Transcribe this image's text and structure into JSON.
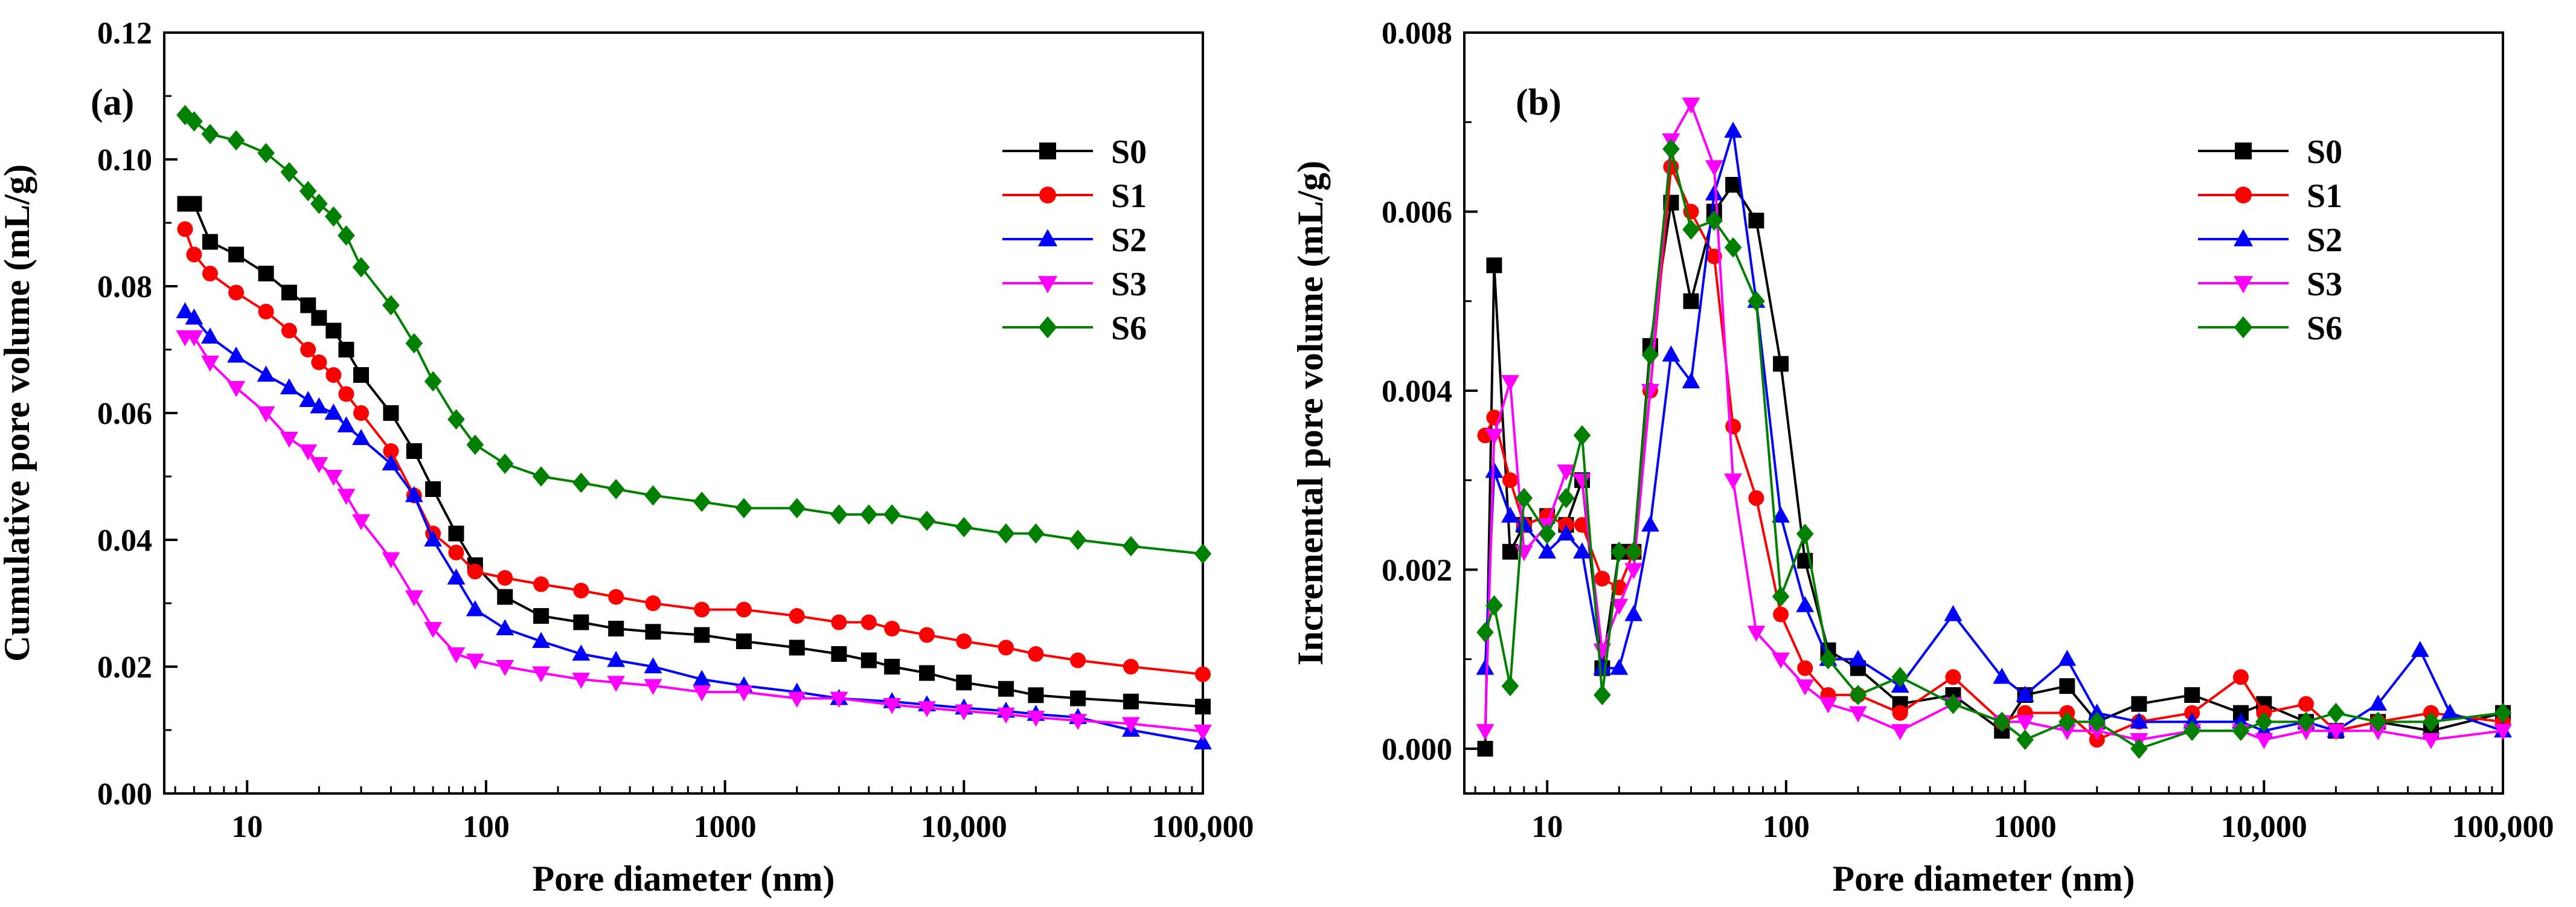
{
  "colors": {
    "S0": "#000000",
    "S1": "#ff0000",
    "S2": "#0000ff",
    "S3": "#ff00ff",
    "S6": "#008000"
  },
  "chart_data": [
    {
      "type": "line",
      "panel_label": "(a)",
      "xlabel": "Pore diameter (nm)",
      "ylabel": "Cumulative pore volume (mL/g)",
      "xscale": "log",
      "xlim": [
        4.5,
        100000
      ],
      "ylim": [
        0,
        0.12
      ],
      "xticks": [
        10,
        100,
        1000,
        10000,
        100000
      ],
      "xtick_labels": [
        "10",
        "100",
        "1000",
        "10,000",
        "100,000"
      ],
      "yticks": [
        0,
        0.02,
        0.04,
        0.06,
        0.08,
        0.1,
        0.12
      ],
      "ytick_labels": [
        "0.00",
        "0.02",
        "0.04",
        "0.06",
        "0.08",
        "0.10",
        "0.12"
      ],
      "legend": "top-right",
      "series": [
        {
          "name": "S0",
          "marker": "square",
          "color": "#000000",
          "x": [
            5.5,
            6,
            7,
            9,
            12,
            15,
            18,
            20,
            23,
            26,
            30,
            40,
            50,
            60,
            75,
            90,
            120,
            170,
            250,
            350,
            500,
            800,
            1200,
            2000,
            3000,
            4000,
            5000,
            7000,
            10000,
            15000,
            20000,
            30000,
            50000,
            100000
          ],
          "y": [
            0.093,
            0.093,
            0.087,
            0.085,
            0.082,
            0.079,
            0.077,
            0.075,
            0.073,
            0.07,
            0.066,
            0.06,
            0.054,
            0.048,
            0.041,
            0.036,
            0.031,
            0.028,
            0.027,
            0.026,
            0.0255,
            0.025,
            0.024,
            0.023,
            0.022,
            0.021,
            0.02,
            0.019,
            0.0175,
            0.0165,
            0.0155,
            0.015,
            0.0145,
            0.0137
          ]
        },
        {
          "name": "S1",
          "marker": "circle",
          "color": "#ff0000",
          "x": [
            5.5,
            6,
            7,
            9,
            12,
            15,
            18,
            20,
            23,
            26,
            30,
            40,
            50,
            60,
            75,
            90,
            120,
            170,
            250,
            350,
            500,
            800,
            1200,
            2000,
            3000,
            4000,
            5000,
            7000,
            10000,
            15000,
            20000,
            30000,
            50000,
            100000
          ],
          "y": [
            0.089,
            0.085,
            0.082,
            0.079,
            0.076,
            0.073,
            0.07,
            0.068,
            0.066,
            0.063,
            0.06,
            0.054,
            0.047,
            0.041,
            0.038,
            0.035,
            0.034,
            0.033,
            0.032,
            0.031,
            0.03,
            0.029,
            0.029,
            0.028,
            0.027,
            0.027,
            0.026,
            0.025,
            0.024,
            0.023,
            0.022,
            0.021,
            0.02,
            0.0188
          ]
        },
        {
          "name": "S2",
          "marker": "triangle-up",
          "color": "#0000ff",
          "x": [
            5.5,
            6,
            7,
            9,
            12,
            15,
            18,
            20,
            23,
            26,
            30,
            40,
            50,
            60,
            75,
            90,
            120,
            170,
            250,
            350,
            500,
            800,
            1200,
            2000,
            3000,
            5000,
            7000,
            10000,
            15000,
            20000,
            30000,
            50000,
            100000
          ],
          "y": [
            0.076,
            0.075,
            0.072,
            0.069,
            0.066,
            0.064,
            0.062,
            0.061,
            0.06,
            0.058,
            0.056,
            0.052,
            0.047,
            0.04,
            0.034,
            0.029,
            0.026,
            0.024,
            0.022,
            0.021,
            0.02,
            0.018,
            0.017,
            0.016,
            0.015,
            0.0145,
            0.014,
            0.0135,
            0.013,
            0.0125,
            0.012,
            0.01,
            0.008
          ]
        },
        {
          "name": "S3",
          "marker": "triangle-down",
          "color": "#ff00ff",
          "x": [
            5.5,
            6,
            7,
            9,
            12,
            15,
            18,
            20,
            23,
            26,
            30,
            40,
            50,
            60,
            75,
            90,
            120,
            170,
            250,
            350,
            500,
            800,
            1200,
            2000,
            3000,
            5000,
            7000,
            10000,
            15000,
            20000,
            30000,
            50000,
            100000
          ],
          "y": [
            0.072,
            0.072,
            0.068,
            0.064,
            0.06,
            0.056,
            0.054,
            0.052,
            0.05,
            0.047,
            0.043,
            0.037,
            0.031,
            0.026,
            0.022,
            0.021,
            0.02,
            0.019,
            0.018,
            0.0175,
            0.017,
            0.016,
            0.016,
            0.015,
            0.015,
            0.014,
            0.0135,
            0.013,
            0.0125,
            0.012,
            0.0115,
            0.011,
            0.0098
          ]
        },
        {
          "name": "S6",
          "marker": "diamond",
          "color": "#008000",
          "x": [
            5.5,
            6,
            7,
            9,
            12,
            15,
            18,
            20,
            23,
            26,
            30,
            40,
            50,
            60,
            75,
            90,
            120,
            170,
            250,
            350,
            500,
            800,
            1200,
            2000,
            3000,
            4000,
            5000,
            7000,
            10000,
            15000,
            20000,
            30000,
            50000,
            100000
          ],
          "y": [
            0.107,
            0.106,
            0.104,
            0.103,
            0.101,
            0.098,
            0.095,
            0.093,
            0.091,
            0.088,
            0.083,
            0.077,
            0.071,
            0.065,
            0.059,
            0.055,
            0.052,
            0.05,
            0.049,
            0.048,
            0.047,
            0.046,
            0.045,
            0.045,
            0.044,
            0.044,
            0.044,
            0.043,
            0.042,
            0.041,
            0.041,
            0.04,
            0.039,
            0.0378
          ]
        }
      ]
    },
    {
      "type": "line",
      "panel_label": "(b)",
      "xlabel": "Pore diameter (nm)",
      "ylabel": "Incremental pore volume (mL/g)",
      "xscale": "log",
      "xlim": [
        4.5,
        100000
      ],
      "ylim": [
        -0.0005,
        0.008
      ],
      "xticks": [
        10,
        100,
        1000,
        10000,
        100000
      ],
      "xtick_labels": [
        "10",
        "100",
        "1000",
        "10,000",
        "100,000"
      ],
      "yticks": [
        0,
        0.002,
        0.004,
        0.006,
        0.008
      ],
      "ytick_labels": [
        "0.000",
        "0.002",
        "0.004",
        "0.006",
        "0.008"
      ],
      "legend": "top-right",
      "series": [
        {
          "name": "S0",
          "marker": "square",
          "color": "#000000",
          "x": [
            5.5,
            6,
            7,
            8,
            10,
            12,
            14,
            17,
            20,
            23,
            27,
            33,
            40,
            50,
            60,
            75,
            95,
            120,
            150,
            200,
            300,
            500,
            800,
            1000,
            1500,
            2000,
            3000,
            5000,
            8000,
            10000,
            15000,
            20000,
            30000,
            50000,
            100000
          ],
          "y": [
            0.0,
            0.0054,
            0.0022,
            0.0025,
            0.0026,
            0.0025,
            0.003,
            0.0009,
            0.0022,
            0.0022,
            0.0045,
            0.0061,
            0.005,
            0.006,
            0.0063,
            0.0059,
            0.0043,
            0.0021,
            0.0011,
            0.0009,
            0.0005,
            0.0006,
            0.0002,
            0.0006,
            0.0007,
            0.0003,
            0.0005,
            0.0006,
            0.0004,
            0.0005,
            0.0003,
            0.0002,
            0.0003,
            0.0002,
            0.0004
          ]
        },
        {
          "name": "S1",
          "marker": "circle",
          "color": "#ff0000",
          "x": [
            5.5,
            6,
            7,
            8,
            10,
            12,
            14,
            17,
            20,
            23,
            27,
            33,
            40,
            50,
            60,
            75,
            95,
            120,
            150,
            200,
            300,
            500,
            800,
            1000,
            1500,
            2000,
            3000,
            5000,
            8000,
            10000,
            15000,
            20000,
            30000,
            50000,
            100000
          ],
          "y": [
            0.0035,
            0.0037,
            0.003,
            0.0025,
            0.0026,
            0.0025,
            0.0025,
            0.0019,
            0.0018,
            0.0022,
            0.004,
            0.0065,
            0.006,
            0.0055,
            0.0036,
            0.0028,
            0.0015,
            0.0009,
            0.0006,
            0.0006,
            0.0004,
            0.0008,
            0.0003,
            0.0004,
            0.0004,
            0.0001,
            0.0003,
            0.0004,
            0.0008,
            0.0004,
            0.0005,
            0.0002,
            0.0003,
            0.0004,
            0.0003
          ]
        },
        {
          "name": "S2",
          "marker": "triangle-up",
          "color": "#0000ff",
          "x": [
            5.5,
            6,
            7,
            8,
            10,
            12,
            14,
            17,
            20,
            23,
            27,
            33,
            40,
            50,
            60,
            75,
            95,
            120,
            150,
            200,
            300,
            500,
            800,
            1000,
            1500,
            2000,
            3000,
            5000,
            8000,
            10000,
            15000,
            20000,
            30000,
            45000,
            60000,
            100000
          ],
          "y": [
            0.0009,
            0.0031,
            0.0026,
            0.0025,
            0.0022,
            0.0024,
            0.0022,
            0.0009,
            0.0009,
            0.0015,
            0.0025,
            0.0044,
            0.0041,
            0.0062,
            0.0069,
            0.005,
            0.0026,
            0.0016,
            0.001,
            0.001,
            0.0007,
            0.0015,
            0.0008,
            0.0006,
            0.001,
            0.0004,
            0.0003,
            0.0003,
            0.0003,
            0.0002,
            0.0003,
            0.0002,
            0.0005,
            0.0011,
            0.0004,
            0.0002
          ]
        },
        {
          "name": "S3",
          "marker": "triangle-down",
          "color": "#ff00ff",
          "x": [
            5.5,
            6,
            7,
            8,
            10,
            12,
            14,
            17,
            20,
            23,
            27,
            33,
            40,
            50,
            60,
            75,
            95,
            120,
            150,
            200,
            300,
            500,
            800,
            1000,
            1500,
            2000,
            3000,
            5000,
            8000,
            10000,
            15000,
            20000,
            30000,
            50000,
            100000
          ],
          "y": [
            0.0002,
            0.0035,
            0.0041,
            0.0022,
            0.0025,
            0.0031,
            0.003,
            0.0011,
            0.0016,
            0.002,
            0.004,
            0.0068,
            0.0072,
            0.0065,
            0.003,
            0.0013,
            0.001,
            0.0007,
            0.0005,
            0.0004,
            0.0002,
            0.0005,
            0.0003,
            0.0003,
            0.0002,
            0.0002,
            0.0001,
            0.0002,
            0.0002,
            0.0001,
            0.0002,
            0.0002,
            0.0002,
            0.0001,
            0.0002
          ]
        },
        {
          "name": "S6",
          "marker": "diamond",
          "color": "#008000",
          "x": [
            5.5,
            6,
            7,
            8,
            10,
            12,
            14,
            17,
            20,
            23,
            27,
            33,
            40,
            50,
            60,
            75,
            95,
            120,
            150,
            200,
            300,
            500,
            800,
            1000,
            1500,
            2000,
            3000,
            5000,
            8000,
            10000,
            15000,
            20000,
            30000,
            50000,
            100000
          ],
          "y": [
            0.0013,
            0.0016,
            0.0007,
            0.0028,
            0.0024,
            0.0028,
            0.0035,
            0.0006,
            0.0022,
            0.0022,
            0.0044,
            0.0067,
            0.0058,
            0.0059,
            0.0056,
            0.005,
            0.0017,
            0.0024,
            0.001,
            0.0006,
            0.0008,
            0.0005,
            0.0003,
            0.0001,
            0.0003,
            0.0003,
            0.0,
            0.0002,
            0.0002,
            0.0003,
            0.0003,
            0.0004,
            0.0003,
            0.0003,
            0.0004
          ]
        }
      ]
    }
  ]
}
